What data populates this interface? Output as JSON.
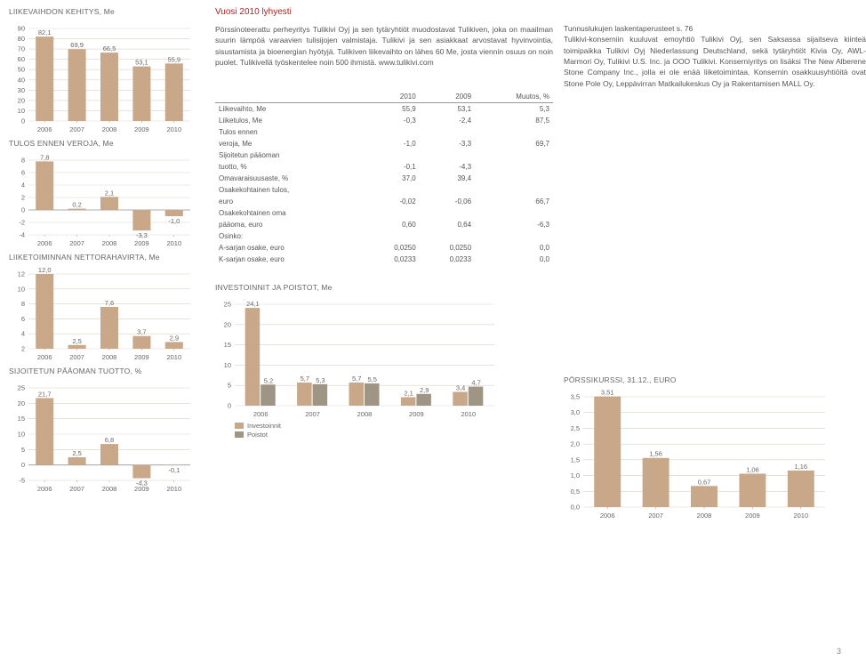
{
  "charts": {
    "revenue": {
      "title": "LIIKEVAIHDON KEHITYS, Me",
      "type": "bar",
      "categories": [
        "2006",
        "2007",
        "2008",
        "2009",
        "2010"
      ],
      "values": [
        82.1,
        69.9,
        66.5,
        53.1,
        55.9
      ],
      "value_labels": [
        "82,1",
        "69,9",
        "66,5",
        "53,1",
        "55,9"
      ],
      "ylim": [
        0,
        90
      ],
      "ytick_step": 10,
      "bar_color": "#c9a88a",
      "grid_color": "#d8d2c8",
      "bg": "#ffffff"
    },
    "pretax": {
      "title": "TULOS ENNEN VEROJA, Me",
      "type": "bar",
      "categories": [
        "2006",
        "2007",
        "2008",
        "2009",
        "2010"
      ],
      "values": [
        7.8,
        0.2,
        2.1,
        -3.3,
        -1.0
      ],
      "value_labels": [
        "7,8",
        "0,2",
        "2,1",
        "-3,3",
        "-1,0"
      ],
      "ylim": [
        -4,
        8
      ],
      "ytick_step": 2,
      "bar_color": "#c9a88a",
      "grid_color": "#d8d2c8"
    },
    "cashflow": {
      "title": "LIIKETOIMINNAN NETTORAHAVIRTA, Me",
      "type": "bar",
      "categories": [
        "2006",
        "2007",
        "2008",
        "2009",
        "2010"
      ],
      "values": [
        12.0,
        2.5,
        7.6,
        3.7,
        2.9
      ],
      "value_labels": [
        "12,0",
        "2,5",
        "7,6",
        "3,7",
        "2,9"
      ],
      "ylim": [
        2,
        12
      ],
      "ytick_step": 2,
      "bar_color": "#c9a88a",
      "grid_color": "#d8d2c8"
    },
    "roce": {
      "title": "SIJOITETUN PÄÄOMAN TUOTTO, %",
      "type": "bar",
      "categories": [
        "2006",
        "2007",
        "2008",
        "2009",
        "2010"
      ],
      "values": [
        21.7,
        2.5,
        6.8,
        -4.3,
        -0.1
      ],
      "value_labels": [
        "21,7",
        "2,5",
        "6,8",
        "-4,3",
        "-0,1"
      ],
      "ylim": [
        -5,
        25
      ],
      "ytick_step": 5,
      "bar_color": "#c9a88a",
      "grid_color": "#d8d2c8"
    },
    "invest": {
      "title": "INVESTOINNIT JA POISTOT, Me",
      "type": "grouped-bar",
      "categories": [
        "2006",
        "2007",
        "2008",
        "2009",
        "2010"
      ],
      "series": [
        {
          "name": "Investoinnit",
          "color": "#c9a88a",
          "values": [
            24.1,
            5.7,
            5.7,
            2.1,
            3.4
          ],
          "labels": [
            "24,1",
            "5,7",
            "5,7",
            "2,1",
            "3,4"
          ]
        },
        {
          "name": "Poistot",
          "color": "#9f9584",
          "values": [
            5.2,
            5.3,
            5.5,
            2.9,
            4.7
          ],
          "labels": [
            "5,2",
            "5,3",
            "5,5",
            "2,9",
            "4,7"
          ]
        }
      ],
      "ylim": [
        0,
        25
      ],
      "ytick_step": 5,
      "grid_color": "#d8d2c8",
      "legend_labels": [
        "Investoinnit",
        "Poistot"
      ]
    },
    "stock": {
      "title": "PÖRSSIKURSSI, 31.12., EURO",
      "type": "bar",
      "categories": [
        "2006",
        "2007",
        "2008",
        "2009",
        "2010"
      ],
      "values": [
        3.51,
        1.56,
        0.67,
        1.06,
        1.16
      ],
      "value_labels": [
        "3,51",
        "1,56",
        "0,67",
        "1,06",
        "1,16"
      ],
      "ylim": [
        0,
        3.5
      ],
      "ytick_step": 0.5,
      "ytick_labels": [
        "0,0",
        "0,5",
        "1,0",
        "1,5",
        "2,0",
        "2,5",
        "3,0",
        "3,5"
      ],
      "bar_color": "#c9a88a",
      "grid_color": "#d8d2c8"
    }
  },
  "summary": {
    "title": "Vuosi 2010 lyhyesti",
    "paragraph": "Pörssinoteerattu perheyritys Tulikivi Oyj ja sen tytäryhtiöt muodostavat Tulikiven, joka on maailman suurin lämpöä varaavien tulisijojen valmistaja. Tulikivi ja sen asiakkaat arvostavat hyvinvointia, sisustamista ja bioenergian hyötyjä. Tulikiven liikevaihto on lähes 60 Me, josta viennin osuus on noin puolet. Tulikivellä työskentelee noin 500 ihmistä. www.tulikivi.com"
  },
  "notes": {
    "paragraph": "Tunnuslukujen laskentaperusteet s. 76\nTulikivi-konserniin kuuluvat emoyhtiö Tulikivi Oyj, sen Saksassa sijaitseva kiinteä toimipaikka Tulikivi Oyj Niederlassung Deutschland, sekä tytäryhtiöt Kivia Oy, AWL-Marmori Oy, Tulikivi U.S. Inc. ja OOO Tulikivi. Konserniyritys on lisäksi The New Alberene Stone Company Inc., jolla ei ole enää liiketoimintaa. Konsernin osakkuusyhtiöitä ovat Stone Pole Oy, Leppävirran Matkailukeskus Oy ja Rakentamisen MALL Oy."
  },
  "table": {
    "headers": [
      "",
      "2010",
      "2009",
      "Muutos, %"
    ],
    "rows": [
      [
        "Liikevaihto, Me",
        "55,9",
        "53,1",
        "5,3"
      ],
      [
        "Liiketulos, Me",
        "-0,3",
        "-2,4",
        "87,5"
      ],
      [
        "Tulos ennen",
        "",
        "",
        ""
      ],
      [
        "veroja, Me",
        "-1,0",
        "-3,3",
        "69,7"
      ],
      [
        "Sijoitetun pääoman",
        "",
        "",
        ""
      ],
      [
        "tuotto, %",
        "-0,1",
        "-4,3",
        ""
      ],
      [
        "Omavaraisuusaste, %",
        "37,0",
        "39,4",
        ""
      ],
      [
        "Osakekohtainen tulos,",
        "",
        "",
        ""
      ],
      [
        "euro",
        "-0,02",
        "-0,06",
        "66,7"
      ],
      [
        "Osakekohtainen oma",
        "",
        "",
        ""
      ],
      [
        "pääoma, euro",
        "0,60",
        "0,64",
        "-6,3"
      ],
      [
        "Osinko:",
        "",
        "",
        ""
      ],
      [
        "A-sarjan osake, euro",
        "0,0250",
        "0,0250",
        "0,0"
      ],
      [
        "K-sarjan osake, euro",
        "0,0233",
        "0,0233",
        "0,0"
      ]
    ]
  },
  "page_number": "3"
}
